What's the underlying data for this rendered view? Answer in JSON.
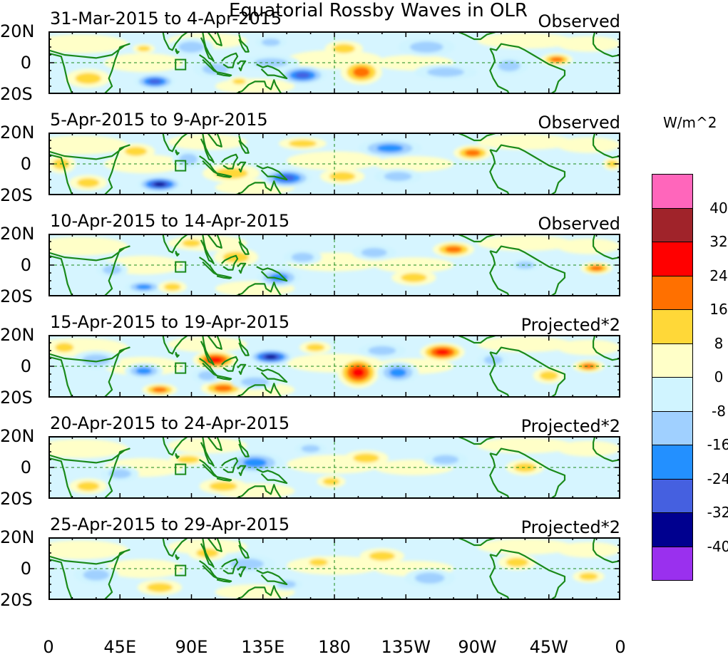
{
  "chart_data": {
    "type": "heatmap",
    "title": "Equatorial Rossby Waves in OLR",
    "units": "W/m^2",
    "x_ticks": [
      "0",
      "45E",
      "90E",
      "135E",
      "180",
      "135W",
      "90W",
      "45W",
      "0"
    ],
    "x_range_deg": [
      0,
      360
    ],
    "y_ticks": [
      "20N",
      "0",
      "20S"
    ],
    "y_range_deg": [
      -20,
      20
    ],
    "colorbar": {
      "colors": [
        "#ff66bb",
        "#a0232a",
        "#ff0000",
        "#ff7000",
        "#ffd838",
        "#ffffc8",
        "#d0f4ff",
        "#a0d0ff",
        "#2390ff",
        "#4560e0",
        "#00008f",
        "#9a30ee"
      ],
      "labels": [
        "40",
        "32",
        "24",
        "16",
        "8",
        "0",
        "-8",
        "-16",
        "-24",
        "-32",
        "-40"
      ]
    },
    "panels": [
      {
        "period": "31-Mar-2015 to 4-Apr-2015",
        "kind": "Observed",
        "anomalies": [
          {
            "lon": 140,
            "lat": 0,
            "rlon": 18,
            "rlat": 5,
            "value": -12
          },
          {
            "lon": 160,
            "lat": -8,
            "rlon": 15,
            "rlat": 6,
            "value": -28
          },
          {
            "lon": 197,
            "lat": -6,
            "rlon": 13,
            "rlat": 8,
            "value": 17
          },
          {
            "lon": 186,
            "lat": 9,
            "rlon": 12,
            "rlat": 5,
            "value": 10
          },
          {
            "lon": 67,
            "lat": -12,
            "rlon": 13,
            "rlat": 5,
            "value": -25
          },
          {
            "lon": 60,
            "lat": 9,
            "rlon": 7,
            "rlat": 3,
            "value": 12
          },
          {
            "lon": 105,
            "lat": -4,
            "rlon": 14,
            "rlat": 6,
            "value": -15
          },
          {
            "lon": 120,
            "lat": -12,
            "rlon": 7,
            "rlat": 3,
            "value": 10
          },
          {
            "lon": 90,
            "lat": 10,
            "rlon": 14,
            "rlat": 6,
            "value": -9
          },
          {
            "lon": 320,
            "lat": 2,
            "rlon": 10,
            "rlat": 4,
            "value": 16
          },
          {
            "lon": 290,
            "lat": -2,
            "rlon": 12,
            "rlat": 6,
            "value": -8
          },
          {
            "lon": 25,
            "lat": -10,
            "rlon": 14,
            "rlat": 6,
            "value": 8
          },
          {
            "lon": 140,
            "lat": 13,
            "rlon": 10,
            "rlat": 4,
            "value": -10
          },
          {
            "lon": 238,
            "lat": 10,
            "rlon": 18,
            "rlat": 6,
            "value": -9
          },
          {
            "lon": 250,
            "lat": -6,
            "rlon": 20,
            "rlat": 5,
            "value": -8
          }
        ]
      },
      {
        "period": "5-Apr-2015 to 9-Apr-2015",
        "kind": "Observed",
        "anomalies": [
          {
            "lon": 70,
            "lat": -13,
            "rlon": 14,
            "rlat": 5,
            "value": -32
          },
          {
            "lon": 150,
            "lat": -9,
            "rlon": 16,
            "rlat": 6,
            "value": -27
          },
          {
            "lon": 115,
            "lat": -6,
            "rlon": 18,
            "rlat": 6,
            "value": 9
          },
          {
            "lon": 55,
            "lat": 8,
            "rlon": 12,
            "rlat": 5,
            "value": 14
          },
          {
            "lon": 8,
            "lat": 0,
            "rlon": 9,
            "rlat": 6,
            "value": 15
          },
          {
            "lon": 215,
            "lat": 10,
            "rlon": 20,
            "rlat": 6,
            "value": -18
          },
          {
            "lon": 185,
            "lat": -8,
            "rlon": 14,
            "rlat": 5,
            "value": 12
          },
          {
            "lon": 267,
            "lat": 7,
            "rlon": 12,
            "rlat": 5,
            "value": 18
          },
          {
            "lon": 355,
            "lat": 0,
            "rlon": 6,
            "rlat": 4,
            "value": 14
          },
          {
            "lon": 88,
            "lat": 3,
            "rlon": 10,
            "rlat": 6,
            "value": -10
          },
          {
            "lon": 220,
            "lat": -8,
            "rlon": 15,
            "rlat": 5,
            "value": -9
          },
          {
            "lon": 25,
            "lat": -12,
            "rlon": 12,
            "rlat": 5,
            "value": 8
          },
          {
            "lon": 160,
            "lat": 13,
            "rlon": 15,
            "rlat": 4,
            "value": 8
          }
        ]
      },
      {
        "period": "10-Apr-2015 to 14-Apr-2015",
        "kind": "Observed",
        "anomalies": [
          {
            "lon": 60,
            "lat": -14,
            "rlon": 12,
            "rlat": 4,
            "value": -20
          },
          {
            "lon": 78,
            "lat": -14,
            "rlon": 9,
            "rlat": 4,
            "value": 15
          },
          {
            "lon": 145,
            "lat": -8,
            "rlon": 14,
            "rlat": 6,
            "value": -20
          },
          {
            "lon": 118,
            "lat": 5,
            "rlon": 14,
            "rlat": 6,
            "value": 10
          },
          {
            "lon": 205,
            "lat": 8,
            "rlon": 14,
            "rlat": 5,
            "value": -15
          },
          {
            "lon": 255,
            "lat": 10,
            "rlon": 13,
            "rlat": 5,
            "value": 18
          },
          {
            "lon": 345,
            "lat": -2,
            "rlon": 10,
            "rlat": 4,
            "value": 16
          },
          {
            "lon": 160,
            "lat": 5,
            "rlon": 12,
            "rlat": 5,
            "value": -10
          },
          {
            "lon": 40,
            "lat": -3,
            "rlon": 10,
            "rlat": 5,
            "value": -9
          },
          {
            "lon": 90,
            "lat": 14,
            "rlon": 10,
            "rlat": 4,
            "value": 8
          },
          {
            "lon": 230,
            "lat": -8,
            "rlon": 14,
            "rlat": 5,
            "value": 8
          },
          {
            "lon": 300,
            "lat": 0,
            "rlon": 10,
            "rlat": 4,
            "value": -8
          }
        ]
      },
      {
        "period": "15-Apr-2015 to 19-Apr-2015",
        "kind": "Projected*2",
        "anomalies": [
          {
            "lon": 140,
            "lat": 6,
            "rlon": 14,
            "rlat": 5,
            "value": -38
          },
          {
            "lon": 105,
            "lat": 4,
            "rlon": 14,
            "rlat": 6,
            "value": 26
          },
          {
            "lon": 195,
            "lat": -4,
            "rlon": 13,
            "rlat": 10,
            "value": 27
          },
          {
            "lon": 248,
            "lat": 9,
            "rlon": 14,
            "rlat": 6,
            "value": 26
          },
          {
            "lon": 70,
            "lat": -15,
            "rlon": 11,
            "rlat": 4,
            "value": 22
          },
          {
            "lon": 110,
            "lat": -14,
            "rlon": 14,
            "rlat": 5,
            "value": 18
          },
          {
            "lon": 60,
            "lat": -3,
            "rlon": 12,
            "rlat": 5,
            "value": -20
          },
          {
            "lon": 100,
            "lat": -6,
            "rlon": 10,
            "rlat": 5,
            "value": -14
          },
          {
            "lon": 130,
            "lat": -10,
            "rlon": 15,
            "rlat": 5,
            "value": -15
          },
          {
            "lon": 220,
            "lat": -4,
            "rlon": 13,
            "rlat": 7,
            "value": -20
          },
          {
            "lon": 210,
            "lat": 10,
            "rlon": 15,
            "rlat": 5,
            "value": -15
          },
          {
            "lon": 168,
            "lat": 12,
            "rlon": 10,
            "rlat": 4,
            "value": 14
          },
          {
            "lon": 340,
            "lat": 0,
            "rlon": 10,
            "rlat": 4,
            "value": 16
          },
          {
            "lon": 315,
            "lat": -6,
            "rlon": 10,
            "rlat": 5,
            "value": 9
          },
          {
            "lon": 30,
            "lat": 4,
            "rlon": 15,
            "rlat": 6,
            "value": -10
          },
          {
            "lon": 10,
            "lat": 12,
            "rlon": 10,
            "rlat": 5,
            "value": 14
          },
          {
            "lon": 280,
            "lat": 4,
            "rlon": 10,
            "rlat": 5,
            "value": -9
          }
        ]
      },
      {
        "period": "20-Apr-2015 to 24-Apr-2015",
        "kind": "Projected*2",
        "anomalies": [
          {
            "lon": 130,
            "lat": 3,
            "rlon": 18,
            "rlat": 7,
            "value": -22
          },
          {
            "lon": 178,
            "lat": -9,
            "rlon": 9,
            "rlat": 4,
            "value": 14
          },
          {
            "lon": 88,
            "lat": 5,
            "rlon": 12,
            "rlat": 4,
            "value": 14
          },
          {
            "lon": 45,
            "lat": -4,
            "rlon": 12,
            "rlat": 5,
            "value": -12
          },
          {
            "lon": 200,
            "lat": 6,
            "rlon": 14,
            "rlat": 5,
            "value": 9
          },
          {
            "lon": 165,
            "lat": 12,
            "rlon": 10,
            "rlat": 4,
            "value": -12
          },
          {
            "lon": 110,
            "lat": -12,
            "rlon": 15,
            "rlat": 5,
            "value": 8
          },
          {
            "lon": 25,
            "lat": -12,
            "rlon": 12,
            "rlat": 5,
            "value": 9
          },
          {
            "lon": 250,
            "lat": 5,
            "rlon": 14,
            "rlat": 5,
            "value": -9
          },
          {
            "lon": 300,
            "lat": 0,
            "rlon": 12,
            "rlat": 5,
            "value": 8
          }
        ]
      },
      {
        "period": "25-Apr-2015 to 29-Apr-2015",
        "kind": "Projected*2",
        "anomalies": [
          {
            "lon": 70,
            "lat": -12,
            "rlon": 14,
            "rlat": 5,
            "value": 14
          },
          {
            "lon": 125,
            "lat": 3,
            "rlon": 18,
            "rlat": 6,
            "value": -12
          },
          {
            "lon": 170,
            "lat": 4,
            "rlon": 10,
            "rlat": 4,
            "value": 12
          },
          {
            "lon": 150,
            "lat": -10,
            "rlon": 10,
            "rlat": 4,
            "value": -10
          },
          {
            "lon": 100,
            "lat": 10,
            "rlon": 12,
            "rlat": 5,
            "value": 8
          },
          {
            "lon": 30,
            "lat": -4,
            "rlon": 14,
            "rlat": 6,
            "value": -9
          },
          {
            "lon": 210,
            "lat": 8,
            "rlon": 14,
            "rlat": 5,
            "value": 8
          },
          {
            "lon": 240,
            "lat": -6,
            "rlon": 16,
            "rlat": 6,
            "value": -9
          },
          {
            "lon": 295,
            "lat": 4,
            "rlon": 12,
            "rlat": 5,
            "value": 9
          },
          {
            "lon": 340,
            "lat": -5,
            "rlon": 10,
            "rlat": 4,
            "value": 9
          }
        ]
      }
    ]
  }
}
